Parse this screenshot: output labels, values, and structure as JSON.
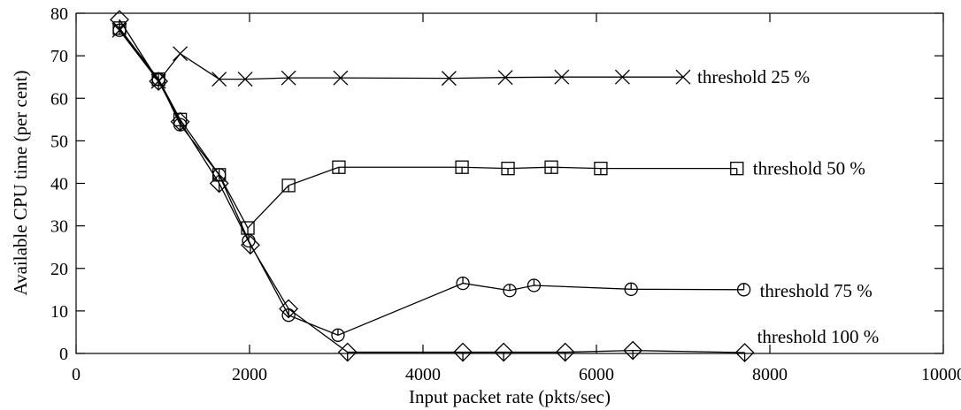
{
  "chart_data": {
    "type": "line",
    "xlabel": "Input packet rate (pkts/sec)",
    "ylabel": "Available CPU time (per cent)",
    "xlim": [
      0,
      10000
    ],
    "ylim": [
      0,
      80
    ],
    "xticks": [
      0,
      2000,
      4000,
      6000,
      8000,
      10000
    ],
    "yticks": [
      0,
      10,
      20,
      30,
      40,
      50,
      60,
      70,
      80
    ],
    "grid": false,
    "legend": "inline labels at line ends",
    "series": [
      {
        "name": "threshold  25 %",
        "marker": "x",
        "x": [
          500,
          950,
          1200,
          1650,
          1950,
          2450,
          3050,
          4300,
          4950,
          5600,
          6300,
          7000
        ],
        "y": [
          76,
          64,
          70.5,
          64.5,
          64.5,
          64.8,
          64.8,
          64.7,
          64.9,
          65,
          65,
          65
        ]
      },
      {
        "name": "threshold  50 %",
        "marker": "square",
        "x": [
          500,
          950,
          1200,
          1650,
          1980,
          2450,
          3030,
          4450,
          4980,
          5480,
          6050,
          7620
        ],
        "y": [
          76.5,
          64.5,
          55,
          42,
          29.5,
          39.5,
          43.8,
          43.8,
          43.5,
          43.8,
          43.5,
          43.5
        ]
      },
      {
        "name": "threshold  75 %",
        "marker": "circle",
        "x": [
          500,
          950,
          1200,
          1650,
          1990,
          2450,
          3020,
          4460,
          5000,
          5280,
          6400,
          7700
        ],
        "y": [
          76,
          64.5,
          53.8,
          42,
          26.5,
          9,
          4.3,
          16.5,
          14.8,
          16,
          15.1,
          15
        ]
      },
      {
        "name": "threshold  100 %",
        "marker": "diamond",
        "x": [
          500,
          950,
          1200,
          1650,
          2010,
          2450,
          3130,
          4460,
          4930,
          5640,
          6420,
          7710
        ],
        "y": [
          78.5,
          64,
          54.5,
          40,
          25.5,
          10.5,
          0.3,
          0.3,
          0.3,
          0.3,
          0.7,
          0.2
        ]
      }
    ]
  }
}
